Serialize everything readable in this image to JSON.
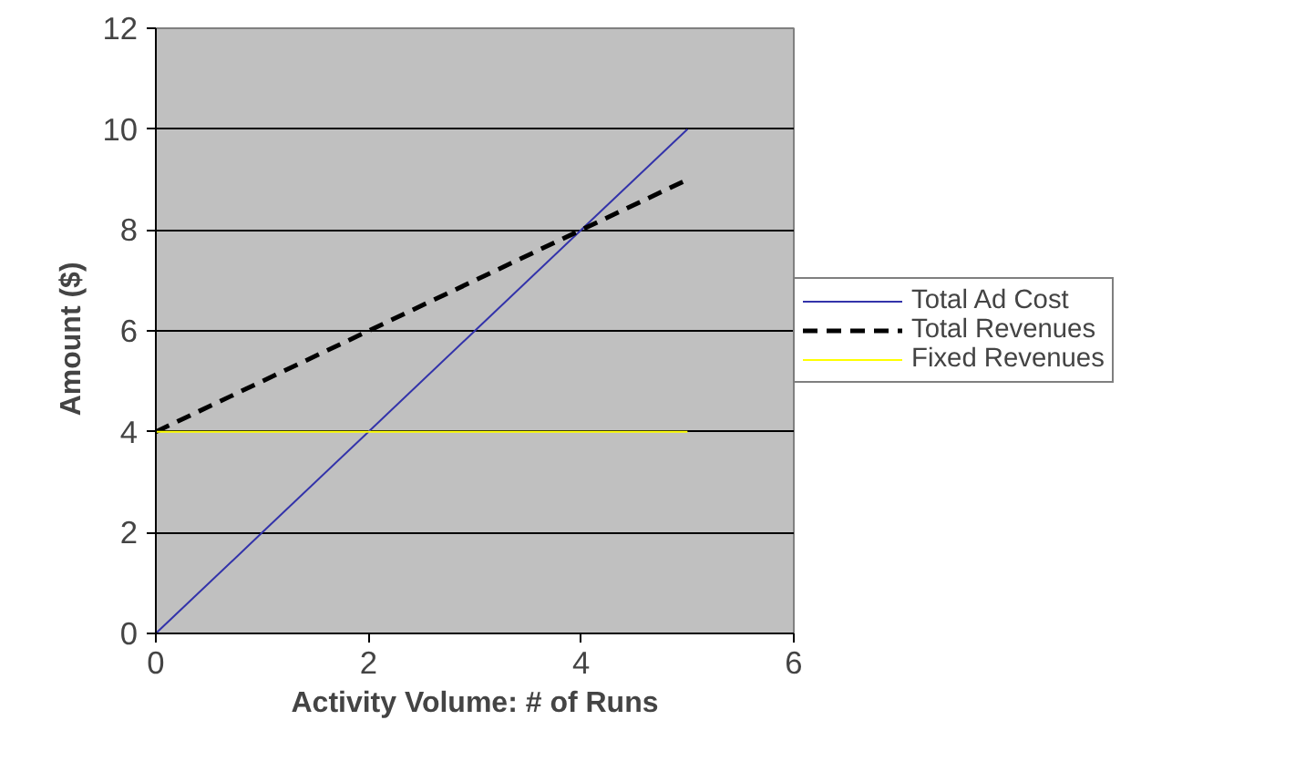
{
  "chart_data": {
    "type": "line",
    "xlabel": "Activity Volume: # of Runs",
    "ylabel": "Amount   ($)",
    "x": [
      0,
      1,
      2,
      3,
      4,
      5
    ],
    "series": [
      {
        "name": "Total Ad Cost",
        "color": "#3333aa",
        "values": [
          0,
          2,
          4,
          6,
          8,
          10
        ],
        "line_style": "solid"
      },
      {
        "name": "Total Revenues",
        "color": "#000000",
        "values": [
          4,
          5,
          6,
          7,
          8,
          9
        ],
        "line_style": "dashed"
      },
      {
        "name": "Fixed Revenues",
        "color": "#ffff00",
        "values": [
          4,
          4,
          4,
          4,
          4,
          4
        ],
        "line_style": "solid"
      }
    ],
    "xlim": [
      0,
      6
    ],
    "xticks": [
      0,
      2,
      4,
      6
    ],
    "ylim": [
      0,
      12
    ],
    "yticks": [
      0,
      2,
      4,
      6,
      8,
      10,
      12
    ],
    "grid": "y",
    "legend": "right",
    "marker": "none"
  }
}
